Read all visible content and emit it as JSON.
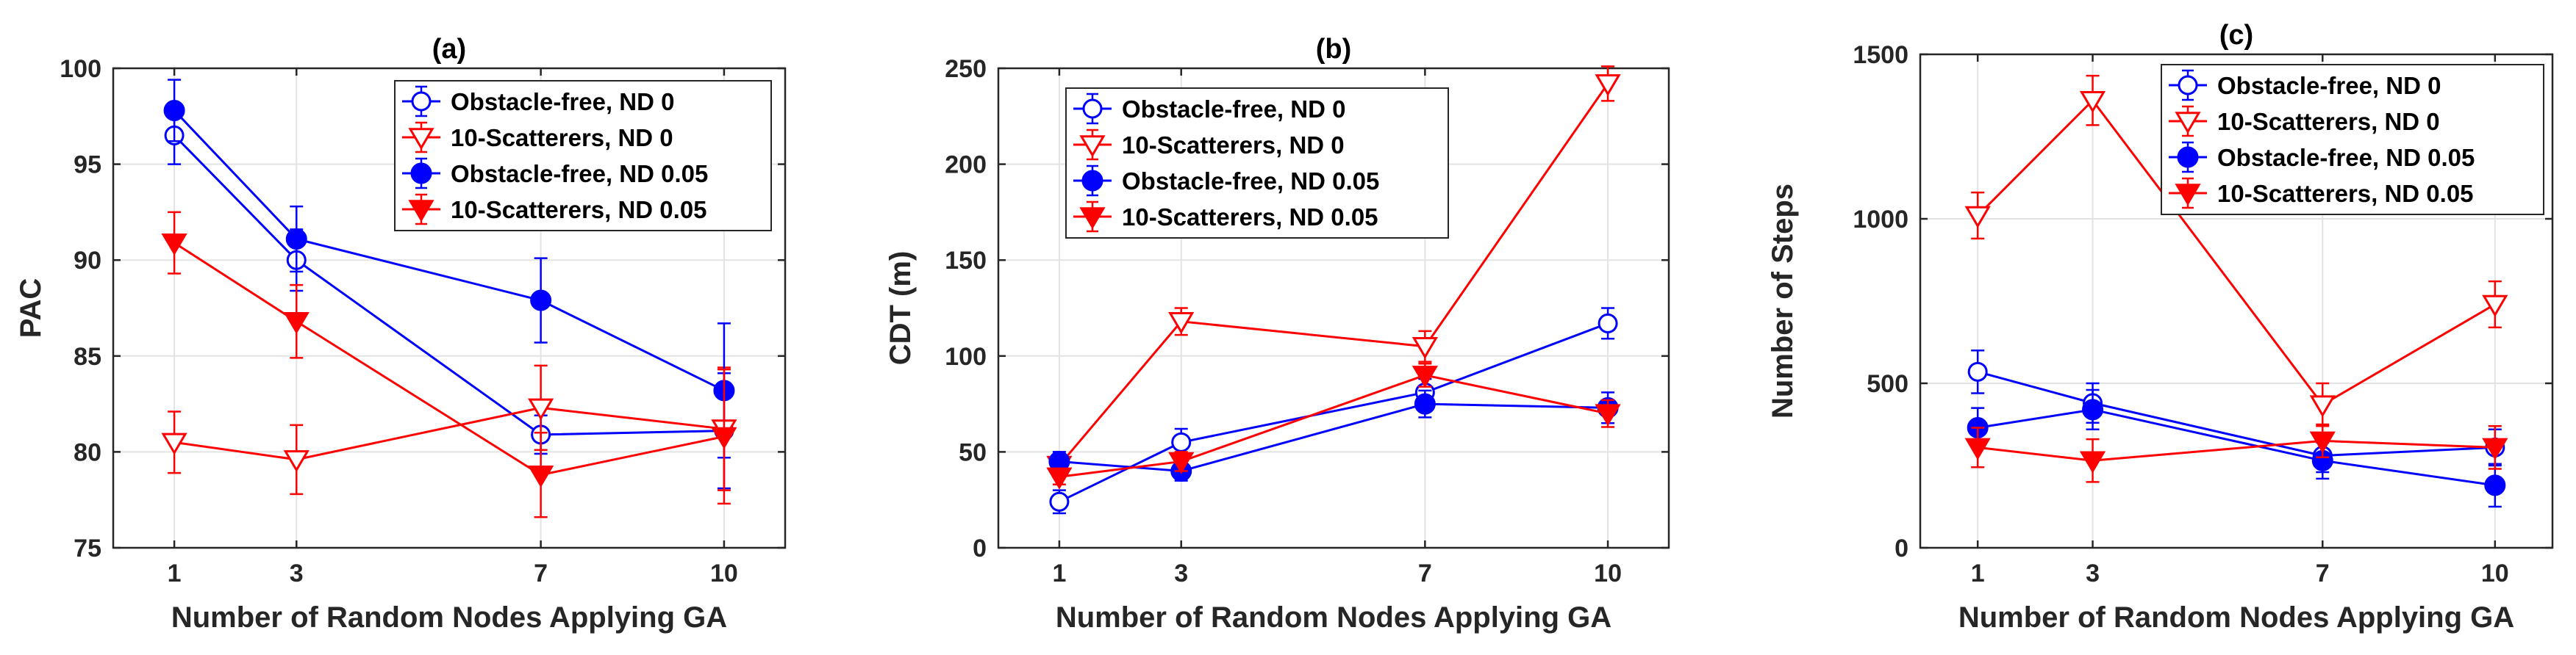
{
  "chart_data": [
    {
      "type": "line",
      "title": "(a)",
      "xlabel": "Number of Random Nodes Applying GA",
      "ylabel": "PAC",
      "x": [
        1,
        3,
        7,
        10
      ],
      "xlim": [
        0,
        11
      ],
      "ylim": [
        75,
        100
      ],
      "xticks": [
        "1",
        "3",
        "7",
        "10"
      ],
      "yticks": [
        "75",
        "80",
        "85",
        "90",
        "95",
        "100"
      ],
      "grid": true,
      "legend": "top-right",
      "series": [
        {
          "name": "Obstacle-free, ND 0",
          "color": "#0000ff",
          "marker": "circle",
          "filled": false,
          "values": [
            96.5,
            90.0,
            80.9,
            81.1
          ],
          "err": [
            1.5,
            1.6,
            1.0,
            3.0
          ]
        },
        {
          "name": "10-Scatterers, ND 0",
          "color": "#ff0000",
          "marker": "triangle-down",
          "filled": false,
          "values": [
            80.5,
            79.6,
            82.3,
            81.2
          ],
          "err": [
            1.6,
            1.8,
            2.2,
            3.2
          ]
        },
        {
          "name": "Obstacle-free, ND 0.05",
          "color": "#0000ff",
          "marker": "circle",
          "filled": true,
          "values": [
            97.8,
            91.1,
            87.9,
            83.2
          ],
          "err": [
            1.6,
            1.7,
            2.2,
            3.5
          ]
        },
        {
          "name": "10-Scatterers, ND 0.05",
          "color": "#ff0000",
          "marker": "triangle-down",
          "filled": true,
          "values": [
            90.9,
            86.8,
            78.8,
            80.8
          ],
          "err": [
            1.6,
            1.9,
            2.2,
            3.5
          ]
        }
      ]
    },
    {
      "type": "line",
      "title": "(b)",
      "xlabel": "Number of Random Nodes Applying GA",
      "ylabel": "CDT (m)",
      "x": [
        1,
        3,
        7,
        10
      ],
      "xlim": [
        0,
        11
      ],
      "ylim": [
        0,
        250
      ],
      "xticks": [
        "1",
        "3",
        "7",
        "10"
      ],
      "yticks": [
        "0",
        "50",
        "100",
        "150",
        "200",
        "250"
      ],
      "grid": true,
      "legend": "top-left",
      "series": [
        {
          "name": "Obstacle-free, ND 0",
          "color": "#0000ff",
          "marker": "circle",
          "filled": false,
          "values": [
            24,
            55,
            81,
            117
          ],
          "err": [
            6,
            7,
            7,
            8
          ]
        },
        {
          "name": "10-Scatterers, ND 0",
          "color": "#ff0000",
          "marker": "triangle-down",
          "filled": false,
          "values": [
            43,
            118,
            105,
            242
          ],
          "err": [
            4,
            7,
            8,
            9
          ]
        },
        {
          "name": "Obstacle-free, ND 0.05",
          "color": "#0000ff",
          "marker": "circle",
          "filled": true,
          "values": [
            45,
            40,
            75,
            73
          ],
          "err": [
            5,
            5,
            7,
            8
          ]
        },
        {
          "name": "10-Scatterers, ND 0.05",
          "color": "#ff0000",
          "marker": "triangle-down",
          "filled": true,
          "values": [
            37,
            45,
            90,
            70
          ],
          "err": [
            4,
            5,
            6,
            7
          ]
        }
      ]
    },
    {
      "type": "line",
      "title": "(c)",
      "xlabel": "Number of Random Nodes Applying GA",
      "ylabel": "Number of Steps",
      "x": [
        1,
        3,
        7,
        10
      ],
      "xlim": [
        0,
        11
      ],
      "ylim": [
        0,
        1500
      ],
      "xticks": [
        "1",
        "3",
        "7",
        "10"
      ],
      "yticks": [
        "0",
        "500",
        "1000",
        "1500"
      ],
      "grid": true,
      "legend": "top-right",
      "series": [
        {
          "name": "Obstacle-free, ND 0",
          "color": "#0000ff",
          "marker": "circle",
          "filled": false,
          "values": [
            535,
            440,
            280,
            305
          ],
          "err": [
            65,
            60,
            50,
            55
          ]
        },
        {
          "name": "10-Scatterers, ND 0",
          "color": "#ff0000",
          "marker": "triangle-down",
          "filled": false,
          "values": [
            1010,
            1360,
            435,
            740
          ],
          "err": [
            70,
            75,
            65,
            70
          ]
        },
        {
          "name": "Obstacle-free, ND 0.05",
          "color": "#0000ff",
          "marker": "circle",
          "filled": true,
          "values": [
            365,
            420,
            265,
            190
          ],
          "err": [
            60,
            60,
            55,
            65
          ]
        },
        {
          "name": "10-Scatterers, ND 0.05",
          "color": "#ff0000",
          "marker": "triangle-down",
          "filled": true,
          "values": [
            305,
            265,
            325,
            305
          ],
          "err": [
            60,
            65,
            50,
            65
          ]
        }
      ]
    }
  ]
}
